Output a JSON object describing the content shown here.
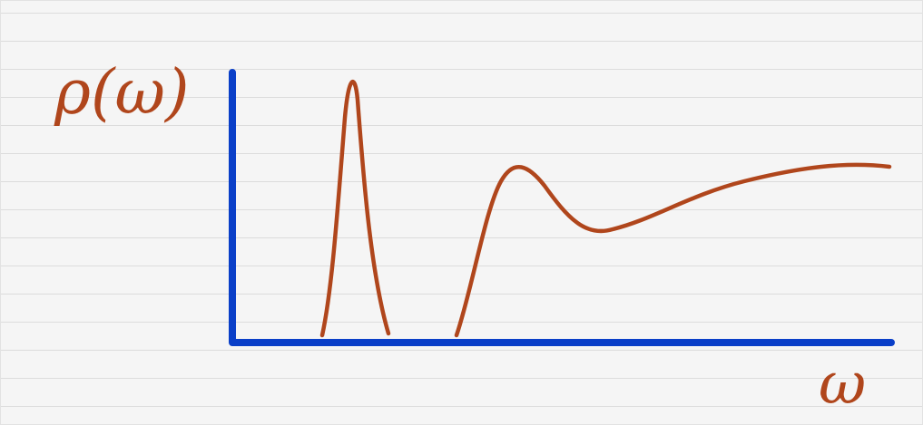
{
  "y_label": "ρ(ω)",
  "x_label": "ω"
}
